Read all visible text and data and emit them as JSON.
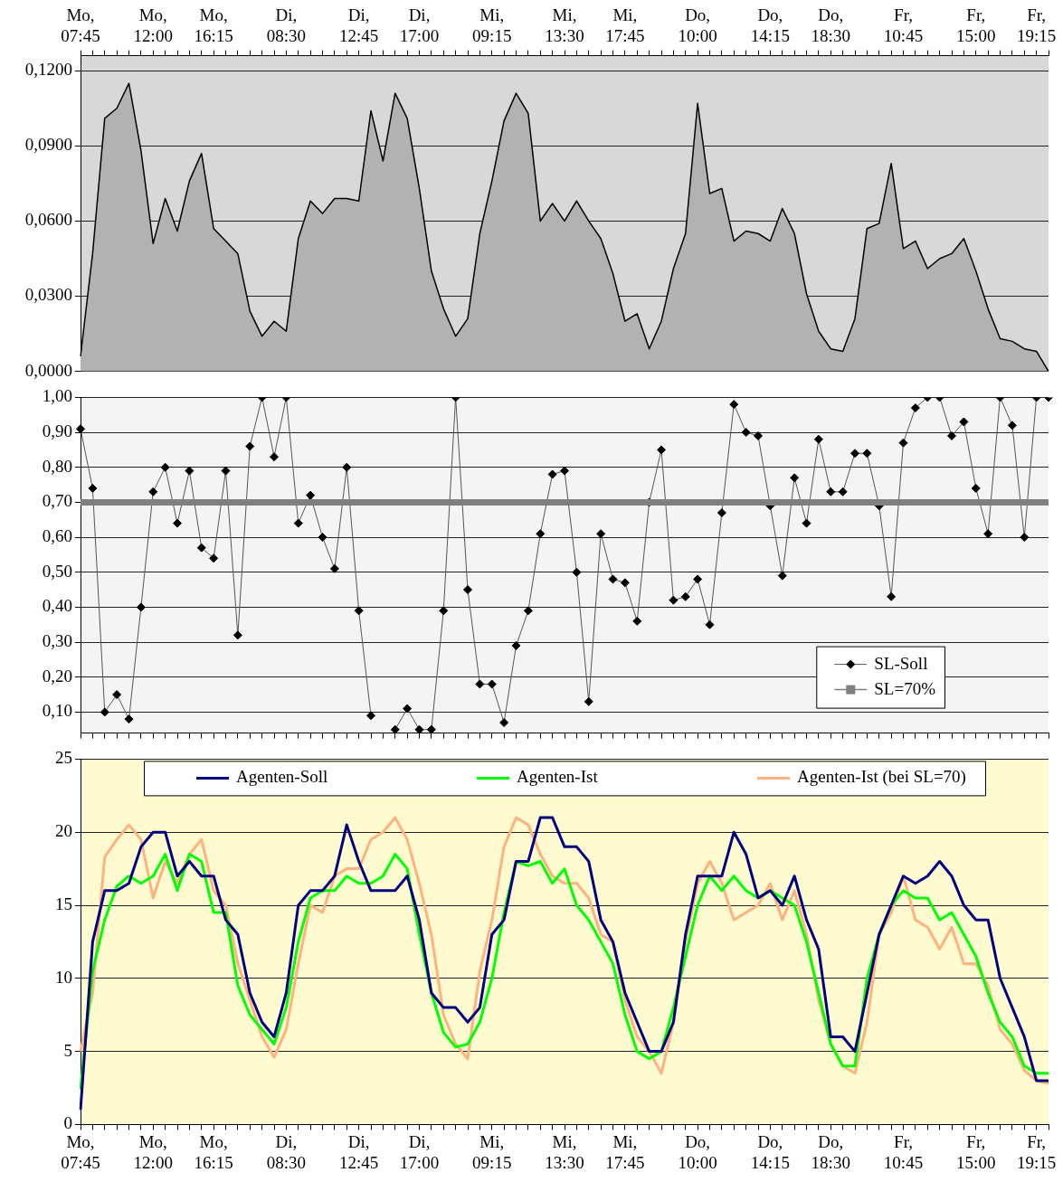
{
  "chart_data": [
    {
      "type": "area",
      "categories": [
        "Mo, 07:45",
        null,
        null,
        null,
        null,
        null,
        "Mo, 12:00",
        null,
        null,
        null,
        null,
        "Mo, 16:15",
        null,
        null,
        null,
        null,
        null,
        "Di, 08:30",
        null,
        null,
        null,
        null,
        null,
        "Di, 12:45",
        null,
        null,
        null,
        null,
        "Di, 17:00",
        null,
        null,
        null,
        null,
        null,
        "Mi, 09:15",
        null,
        null,
        null,
        null,
        null,
        "Mi, 13:30",
        null,
        null,
        null,
        null,
        "Mi, 17:45",
        null,
        null,
        null,
        null,
        null,
        "Do, 10:00",
        null,
        null,
        null,
        null,
        null,
        "Do, 14:15",
        null,
        null,
        null,
        null,
        "Do, 18:30",
        null,
        null,
        null,
        null,
        null,
        "Fr, 10:45",
        null,
        null,
        null,
        null,
        null,
        "Fr, 15:00",
        null,
        null,
        null,
        null,
        "Fr, 19:15",
        null
      ],
      "series": [
        {
          "color": "#b2b2b2",
          "values": [
            0.006,
            0.047,
            0.101,
            0.105,
            0.115,
            0.088,
            0.051,
            0.069,
            0.056,
            0.076,
            0.087,
            0.057,
            0.052,
            0.047,
            0.024,
            0.014,
            0.02,
            0.016,
            0.053,
            0.068,
            0.063,
            0.069,
            0.069,
            0.068,
            0.104,
            0.084,
            0.111,
            0.101,
            0.073,
            0.04,
            0.025,
            0.014,
            0.021,
            0.055,
            0.076,
            0.1,
            0.111,
            0.103,
            0.06,
            0.067,
            0.06,
            0.068,
            0.06,
            0.053,
            0.039,
            0.02,
            0.023,
            0.009,
            0.02,
            0.041,
            0.055,
            0.107,
            0.071,
            0.073,
            0.052,
            0.056,
            0.055,
            0.052,
            0.065,
            0.055,
            0.031,
            0.016,
            0.009,
            0.008,
            0.021,
            0.057,
            0.059,
            0.083,
            0.049,
            0.052,
            0.041,
            0.045,
            0.047,
            0.053,
            0.04,
            0.025,
            0.013,
            0.012,
            0.009,
            0.008,
            0.0
          ]
        }
      ],
      "ylim": [
        0,
        0.126
      ],
      "yticks": [
        {
          "value": 0,
          "label": "0,0000"
        },
        {
          "value": 0.03,
          "label": "0,0300"
        },
        {
          "value": 0.06,
          "label": "0,0600"
        },
        {
          "value": 0.09,
          "label": "0,0900"
        },
        {
          "value": 0.12,
          "label": "0,1200"
        }
      ],
      "grid": "y",
      "legend": false
    },
    {
      "type": "line",
      "categories": [
        null,
        null,
        null,
        null,
        null,
        null,
        null,
        null,
        null,
        null,
        null,
        null,
        null,
        null,
        null,
        null,
        null,
        null,
        null,
        null,
        null,
        null,
        null,
        null,
        null,
        null,
        null,
        null,
        null,
        null,
        null,
        null,
        null,
        null,
        null,
        null,
        null,
        null,
        null,
        null,
        null,
        null,
        null,
        null,
        null,
        null,
        null,
        null,
        null,
        null,
        null,
        null,
        null,
        null,
        null,
        null,
        null,
        null,
        null,
        null,
        null,
        null,
        null,
        null,
        null,
        null,
        null,
        null,
        null,
        null,
        null,
        null,
        null,
        null,
        null,
        null,
        null,
        null,
        null,
        null,
        null
      ],
      "series": [
        {
          "name": "SL-Soll",
          "color": "#000000",
          "marker": "diamond",
          "values": [
            0.91,
            0.74,
            0.1,
            0.15,
            0.08,
            0.4,
            0.73,
            0.8,
            0.64,
            0.79,
            0.57,
            0.54,
            0.79,
            0.32,
            0.86,
            1.0,
            0.83,
            1.0,
            0.64,
            0.72,
            0.6,
            0.51,
            0.8,
            0.39,
            0.09,
            null,
            0.05,
            0.11,
            0.05,
            0.05,
            0.39,
            1.0,
            0.45,
            0.18,
            0.18,
            0.07,
            0.29,
            0.39,
            0.61,
            0.78,
            0.79,
            0.5,
            0.13,
            0.61,
            0.48,
            0.47,
            0.36,
            0.7,
            0.85,
            0.42,
            0.43,
            0.48,
            0.35,
            0.67,
            0.98,
            0.9,
            0.89,
            0.69,
            0.49,
            0.77,
            0.64,
            0.88,
            0.73,
            0.73,
            0.84,
            0.84,
            0.69,
            0.43,
            0.87,
            0.97,
            1.0,
            1.0,
            0.89,
            0.93,
            0.74,
            0.61,
            1.0,
            0.92,
            0.6,
            1.0,
            1.0
          ]
        }
      ],
      "ref_lines": [
        {
          "axis": "y",
          "value": 0.7,
          "label": "SL=70%",
          "color": "#808080"
        }
      ],
      "ylim": [
        0.04,
        1.0
      ],
      "yticks": [
        {
          "value": 0.1,
          "label": "0,10"
        },
        {
          "value": 0.2,
          "label": "0,20"
        },
        {
          "value": 0.3,
          "label": "0,30"
        },
        {
          "value": 0.4,
          "label": "0,40"
        },
        {
          "value": 0.5,
          "label": "0,50"
        },
        {
          "value": 0.6,
          "label": "0,60"
        },
        {
          "value": 0.7,
          "label": "0,70"
        },
        {
          "value": 0.8,
          "label": "0,80"
        },
        {
          "value": 0.9,
          "label": "0,90"
        },
        {
          "value": 1.0,
          "label": "1,00"
        }
      ],
      "tick_labels": "y",
      "grid": "y",
      "legend": "bottom right"
    },
    {
      "type": "line",
      "categories": [
        "Mo, 07:45",
        null,
        null,
        null,
        null,
        null,
        "Mo, 12:00",
        null,
        null,
        null,
        null,
        "Mo, 16:15",
        null,
        null,
        null,
        null,
        null,
        "Di, 08:30",
        null,
        null,
        null,
        null,
        null,
        "Di, 12:45",
        null,
        null,
        null,
        null,
        "Di, 17:00",
        null,
        null,
        null,
        null,
        null,
        "Mi, 09:15",
        null,
        null,
        null,
        null,
        null,
        "Mi, 13:30",
        null,
        null,
        null,
        null,
        "Mi, 17:45",
        null,
        null,
        null,
        null,
        null,
        "Do, 10:00",
        null,
        null,
        null,
        null,
        null,
        "Do, 14:15",
        null,
        null,
        null,
        null,
        "Do, 18:30",
        null,
        null,
        null,
        null,
        null,
        "Fr, 10:45",
        null,
        null,
        null,
        null,
        null,
        "Fr, 15:00",
        null,
        null,
        null,
        null,
        "Fr, 19:15",
        null
      ],
      "series": [
        {
          "name": "Agenten-Soll",
          "color": "#000080",
          "values": [
            1,
            12.5,
            16,
            16,
            16.5,
            19,
            20,
            20,
            17,
            18,
            17,
            17,
            14,
            13,
            9,
            7,
            6,
            9,
            15,
            16,
            16,
            17,
            20.5,
            18,
            16,
            16,
            16,
            17,
            14,
            9,
            8,
            8,
            7,
            8,
            13,
            14,
            18,
            18,
            21,
            21,
            19,
            19,
            18,
            14,
            12.5,
            9,
            7,
            5,
            5,
            7,
            13,
            17,
            17,
            17,
            20,
            18.5,
            15.5,
            16,
            15,
            17,
            14,
            12,
            6,
            6,
            5,
            9,
            13,
            15,
            17,
            16.5,
            17,
            18,
            17,
            15,
            14,
            14,
            10,
            8,
            6,
            3,
            3
          ]
        },
        {
          "name": "Agenten-Ist",
          "color": "#00ff00",
          "values": [
            2.4,
            10.5,
            14,
            16.3,
            17,
            16.5,
            17,
            18.5,
            16,
            18.5,
            18,
            14.5,
            14.5,
            9.5,
            7.5,
            6.5,
            5.5,
            8,
            12.5,
            15.5,
            16,
            16,
            17,
            16.5,
            16.5,
            17,
            18.5,
            17.5,
            13,
            9,
            6.3,
            5.3,
            5.5,
            7,
            10,
            14.5,
            18,
            17.7,
            18,
            16.5,
            17.5,
            15,
            14,
            12.5,
            11,
            7.5,
            5,
            4.5,
            5,
            8,
            11.5,
            15,
            17,
            16,
            17,
            16,
            15.5,
            16,
            15.5,
            15,
            12.5,
            9,
            5.5,
            4,
            4,
            10,
            13,
            15,
            16,
            15.5,
            15.5,
            14,
            14.5,
            13,
            11.5,
            9,
            7,
            6,
            4,
            3.5,
            3.5
          ]
        },
        {
          "name": "Agenten-Ist (bei SL=70)",
          "color": "#ffb27f",
          "values": [
            5,
            9,
            18.3,
            19.5,
            20.5,
            19.5,
            15.5,
            18,
            16.5,
            18.5,
            19.5,
            16,
            15,
            11,
            8.5,
            6,
            4.6,
            6.5,
            11,
            15,
            14.5,
            17,
            17.5,
            17.5,
            19.5,
            20,
            21,
            19.5,
            16.5,
            13,
            7.5,
            5.5,
            4.5,
            10.5,
            14,
            19,
            21,
            20.5,
            18.5,
            17,
            16.5,
            16.5,
            15.5,
            13,
            12.5,
            8.5,
            6,
            5,
            3.5,
            7,
            12.5,
            16.5,
            18,
            16.5,
            14,
            14.5,
            15,
            16.5,
            14,
            16,
            13,
            8.5,
            5.5,
            4,
            3.5,
            7,
            13,
            14.5,
            17,
            14,
            13.5,
            12,
            13.5,
            11,
            11,
            9.5,
            6.5,
            5.5,
            3.7,
            3,
            2.8
          ]
        }
      ],
      "ylim": [
        0,
        25
      ],
      "yticks": [
        0,
        5,
        10,
        15,
        20,
        25
      ],
      "grid": "y",
      "legend": "top"
    }
  ]
}
